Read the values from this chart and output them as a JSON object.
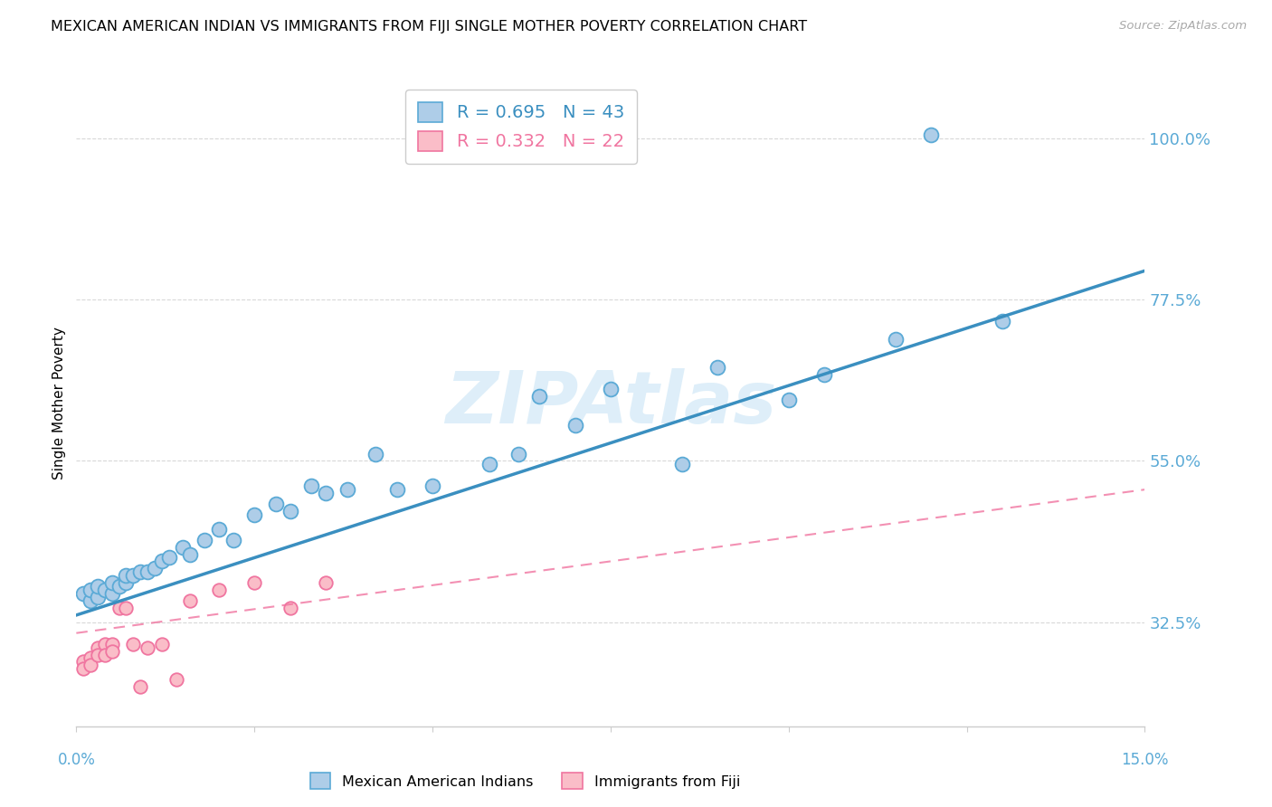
{
  "title": "MEXICAN AMERICAN INDIAN VS IMMIGRANTS FROM FIJI SINGLE MOTHER POVERTY CORRELATION CHART",
  "source": "Source: ZipAtlas.com",
  "ylabel": "Single Mother Poverty",
  "ytick_labels": [
    "32.5%",
    "55.0%",
    "77.5%",
    "100.0%"
  ],
  "ytick_vals": [
    0.325,
    0.55,
    0.775,
    1.0
  ],
  "xlim": [
    0.0,
    0.15
  ],
  "ylim": [
    0.18,
    1.08
  ],
  "legend1_R": "0.695",
  "legend1_N": "43",
  "legend2_R": "0.332",
  "legend2_N": "22",
  "color_blue_fill": "#aecde8",
  "color_blue_edge": "#5baad6",
  "color_pink_fill": "#fabdc8",
  "color_pink_edge": "#f075a0",
  "color_blue_line": "#3a8fc0",
  "color_pink_line": "#f075a0",
  "color_axis_text": "#5baad6",
  "color_grid": "#d8d8d8",
  "color_spine": "#cccccc",
  "watermark_text": "ZIPAtlas",
  "watermark_color": "#c8e4f5",
  "blue_scatter_x": [
    0.001,
    0.002,
    0.002,
    0.003,
    0.003,
    0.004,
    0.005,
    0.005,
    0.006,
    0.007,
    0.007,
    0.008,
    0.009,
    0.01,
    0.011,
    0.012,
    0.013,
    0.015,
    0.016,
    0.018,
    0.02,
    0.022,
    0.025,
    0.028,
    0.03,
    0.033,
    0.035,
    0.038,
    0.042,
    0.045,
    0.05,
    0.058,
    0.062,
    0.065,
    0.07,
    0.075,
    0.085,
    0.09,
    0.1,
    0.105,
    0.115,
    0.13,
    0.12
  ],
  "blue_scatter_y": [
    0.365,
    0.355,
    0.37,
    0.36,
    0.375,
    0.37,
    0.365,
    0.38,
    0.375,
    0.38,
    0.39,
    0.39,
    0.395,
    0.395,
    0.4,
    0.41,
    0.415,
    0.43,
    0.42,
    0.44,
    0.455,
    0.44,
    0.475,
    0.49,
    0.48,
    0.515,
    0.505,
    0.51,
    0.56,
    0.51,
    0.515,
    0.545,
    0.56,
    0.64,
    0.6,
    0.65,
    0.545,
    0.68,
    0.635,
    0.67,
    0.72,
    0.745,
    1.005
  ],
  "pink_scatter_x": [
    0.001,
    0.001,
    0.002,
    0.002,
    0.003,
    0.003,
    0.004,
    0.004,
    0.005,
    0.005,
    0.006,
    0.007,
    0.008,
    0.009,
    0.01,
    0.012,
    0.014,
    0.016,
    0.02,
    0.025,
    0.03,
    0.035
  ],
  "pink_scatter_y": [
    0.27,
    0.26,
    0.275,
    0.265,
    0.29,
    0.28,
    0.295,
    0.28,
    0.295,
    0.285,
    0.345,
    0.345,
    0.295,
    0.235,
    0.29,
    0.295,
    0.245,
    0.355,
    0.37,
    0.38,
    0.345,
    0.38
  ],
  "blue_line_x": [
    0.0,
    0.15
  ],
  "blue_line_y": [
    0.335,
    0.815
  ],
  "pink_line_x": [
    0.0,
    0.15
  ],
  "pink_line_y": [
    0.31,
    0.51
  ]
}
